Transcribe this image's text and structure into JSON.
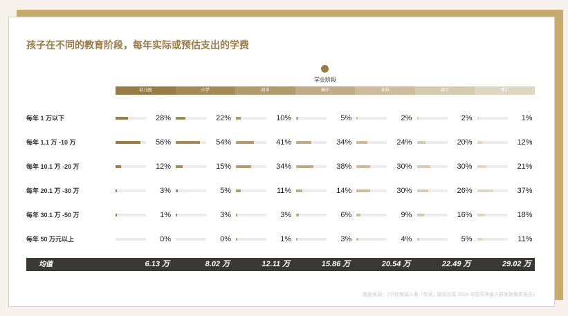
{
  "colors": {
    "title": "#9a7b43",
    "stage_colors": [
      "#9a7b43",
      "#a68a55",
      "#b39b6b",
      "#c1ab84",
      "#cdbb99",
      "#d8caaf",
      "#e1d6c1"
    ],
    "bar_colors": [
      "#9a7b43",
      "#a68a55",
      "#b39b6b",
      "#c1ab84",
      "#cdbb99",
      "#d8caaf",
      "#e1d6c1"
    ]
  },
  "chart_data": {
    "type": "bar",
    "title": "孩子在不同的教育阶段，每年实际或预估支出的学费",
    "legend_title": "学业阶段",
    "series": [
      {
        "name": "幼儿园",
        "values": [
          28,
          56,
          12,
          3,
          1,
          0
        ]
      },
      {
        "name": "小学",
        "values": [
          22,
          54,
          15,
          5,
          3,
          0
        ]
      },
      {
        "name": "初中",
        "values": [
          10,
          41,
          34,
          11,
          3,
          1
        ]
      },
      {
        "name": "高中",
        "values": [
          5,
          34,
          38,
          14,
          6,
          3
        ]
      },
      {
        "name": "本科",
        "values": [
          2,
          24,
          30,
          30,
          9,
          4
        ]
      },
      {
        "name": "硕士",
        "values": [
          2,
          20,
          30,
          26,
          16,
          5
        ]
      },
      {
        "name": "博士",
        "values": [
          1,
          12,
          21,
          37,
          18,
          11
        ]
      }
    ],
    "categories": [
      "每年 1 万以下",
      "每年 1.1 万 -10 万",
      "每年 10.1 万 -20 万",
      "每年 20.1 万 -30 万",
      "每年 30.1 万 -50 万",
      "每年 50 万元以上"
    ],
    "unit": "%",
    "average_label": "均值",
    "averages": [
      "6.13 万",
      "8.02 万",
      "12.11 万",
      "15.86 万",
      "20.54 万",
      "22.49 万",
      "29.02 万"
    ]
  },
  "source": "数据来源：《中信保诚人寿「传家」·胡润百富 2024 中国高净值人群家族教育报告》"
}
